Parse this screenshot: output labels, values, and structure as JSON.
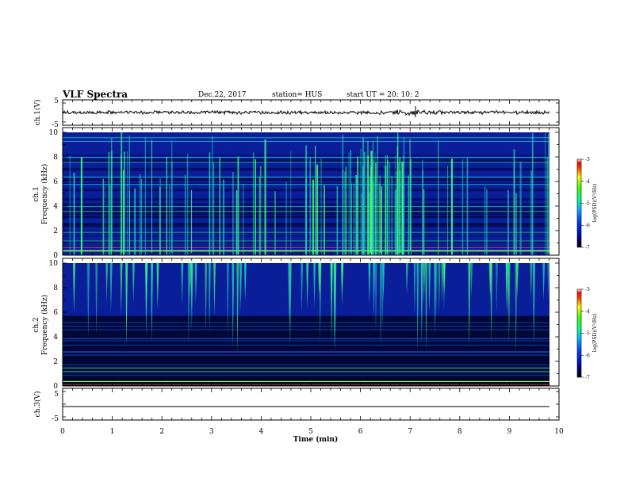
{
  "header": {
    "title": "VLF Spectra",
    "date": "Dec.22, 2017",
    "station": "station= HUS",
    "start_ut": "start UT =   20: 10: 2"
  },
  "chart_data": [
    {
      "type": "line",
      "panel": "ch1-waveform",
      "ylabel": "ch.1(V)",
      "ylim": [
        -5,
        5
      ],
      "yticks": [
        "5",
        "-5"
      ],
      "xlim": [
        0,
        10
      ],
      "description_values": {
        "mean": 0,
        "amplitude_approx": 0.6
      }
    },
    {
      "type": "heatmap",
      "panel": "ch1-spectrogram",
      "ylabel": "ch.1\nFrequency (kHz)",
      "ylim": [
        0,
        10
      ],
      "yticks": [
        "0",
        "2",
        "4",
        "6",
        "8",
        "10"
      ],
      "xlim": [
        0,
        10
      ],
      "colorbar": {
        "label": "log(PSD)(V²/Hz)",
        "range": [
          -7,
          -3
        ],
        "ticks": [
          "-3",
          "-4",
          "-5",
          "-6",
          "-7"
        ]
      }
    },
    {
      "type": "heatmap",
      "panel": "ch2-spectrogram",
      "ylabel": "ch.2\nFrequency (kHz)",
      "ylim": [
        0,
        10
      ],
      "yticks": [
        "0",
        "2",
        "4",
        "6",
        "8",
        "10"
      ],
      "xlim": [
        0,
        10
      ],
      "colorbar": {
        "label": "log(PSD)(V²/Hz)",
        "range": [
          -7,
          -3
        ],
        "ticks": [
          "-3",
          "-4",
          "-5",
          "-6",
          "-7"
        ]
      }
    },
    {
      "type": "line",
      "panel": "ch3-waveform",
      "ylabel": "ch.3(V)",
      "ylim": [
        -5,
        5
      ],
      "yticks": [
        "5",
        "-5"
      ],
      "xlim": [
        0,
        10
      ],
      "description_values": {
        "mean": -1.2,
        "amplitude_approx": 0
      }
    }
  ],
  "xaxis": {
    "label": "Time (min)",
    "ticks": [
      "0",
      "1",
      "2",
      "3",
      "4",
      "5",
      "6",
      "7",
      "8",
      "9",
      "10"
    ]
  },
  "colors": {
    "background_dark": "#000030",
    "spectrogram_blue": "#1030d0",
    "emission_cyan": "#20d8c0",
    "emission_green": "#40ff40"
  }
}
